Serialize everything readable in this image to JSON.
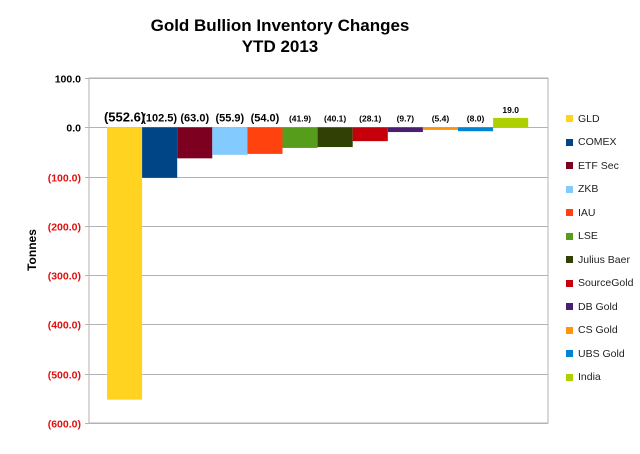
{
  "chart_data": {
    "type": "bar",
    "title": "Gold Bullion Inventory Changes",
    "subtitle": "YTD 2013",
    "xlabel": "",
    "ylabel": "Tonnes",
    "ylim": [
      -600,
      100
    ],
    "yticks": [
      100,
      0,
      -100,
      -200,
      -300,
      -400,
      -500,
      -600
    ],
    "ytick_labels": [
      "100.0",
      "0.0",
      "(100.0)",
      "(200.0)",
      "(300.0)",
      "(400.0)",
      "(500.0)",
      "(600.0)"
    ],
    "grid": true,
    "legend_position": "right",
    "categories": [
      "GLD",
      "COMEX",
      "ETF Sec",
      "ZKB",
      "IAU",
      "LSE",
      "Julius Baer",
      "SourceGold",
      "DB Gold",
      "CS Gold",
      "UBS Gold",
      "India"
    ],
    "values": [
      -552.6,
      -102.5,
      -63.0,
      -55.9,
      -54.0,
      -41.9,
      -40.1,
      -28.1,
      -9.7,
      -5.4,
      -8.0,
      19.0
    ],
    "data_labels": [
      "(552.6)",
      "(102.5)",
      "(63.0)",
      "(55.9)",
      "(54.0)",
      "(41.9)",
      "(40.1)",
      "(28.1)",
      "(9.7)",
      "(5.4)",
      "(8.0)",
      "19.0"
    ],
    "colors": [
      "#FFD320",
      "#004586",
      "#7E0021",
      "#83CAFF",
      "#FF420E",
      "#579D1C",
      "#314004",
      "#C5000B",
      "#4B1F6F",
      "#FF950E",
      "#0084D1",
      "#AECF00"
    ]
  }
}
